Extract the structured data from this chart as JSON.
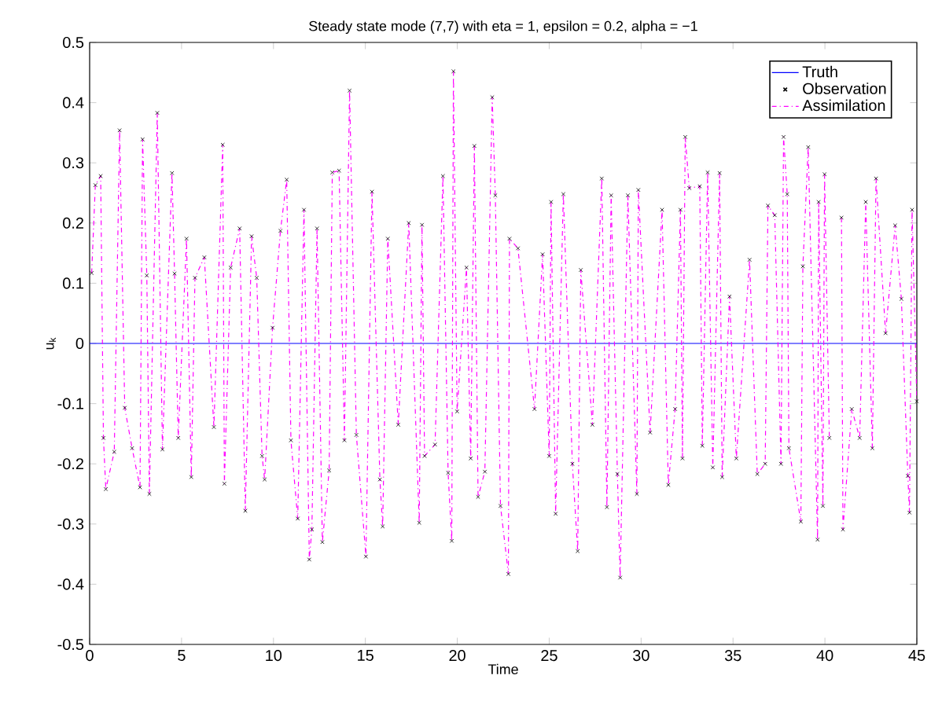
{
  "chart_data": {
    "type": "line",
    "title": "Steady state mode (7,7) with eta = 1, epsilon = 0.2, alpha = −1",
    "xlabel": "Time",
    "ylabel": "u$_{k}$",
    "xlim": [
      0,
      45
    ],
    "ylim": [
      -0.5,
      0.5
    ],
    "xticks": [
      0,
      5,
      10,
      15,
      20,
      25,
      30,
      35,
      40,
      45
    ],
    "yticks": [
      -0.5,
      -0.4,
      -0.3,
      -0.2,
      -0.1,
      0,
      0.1,
      0.2,
      0.3,
      0.4,
      0.5
    ],
    "grid": false,
    "legend": "top right",
    "series": [
      {
        "name": "Truth",
        "color": "#0000ff",
        "marker": "none",
        "line_style": "solid",
        "x": [
          0,
          45
        ],
        "values": [
          0,
          0
        ]
      },
      {
        "name": "Observation",
        "type": "scatter",
        "color": "#000000",
        "marker": "cross",
        "x": [
          0.11,
          0.31,
          0.6,
          0.75,
          0.88,
          1.34,
          1.63,
          1.91,
          2.31,
          2.74,
          2.88,
          3.11,
          3.25,
          3.68,
          3.96,
          4.48,
          4.62,
          4.82,
          5.27,
          5.53,
          5.73,
          6.24,
          6.76,
          7.24,
          7.33,
          7.67,
          8.16,
          8.47,
          8.81,
          9.09,
          9.38,
          9.52,
          9.95,
          10.38,
          10.72,
          10.95,
          11.32,
          11.66,
          11.95,
          12.09,
          12.37,
          12.66,
          13.03,
          13.2,
          13.57,
          13.86,
          14.14,
          14.51,
          15.03,
          15.36,
          15.79,
          15.94,
          16.22,
          16.79,
          17.36,
          17.93,
          18.08,
          18.22,
          18.79,
          19.22,
          19.5,
          19.7,
          19.79,
          19.99,
          20.5,
          20.73,
          20.93,
          21.13,
          21.5,
          21.9,
          22.07,
          22.35,
          22.78,
          22.84,
          23.3,
          24.2,
          24.64,
          25.0,
          25.1,
          25.35,
          25.77,
          26.26,
          26.55,
          26.72,
          27.35,
          27.86,
          28.14,
          28.37,
          28.71,
          28.86,
          29.28,
          29.77,
          29.85,
          30.49,
          31.14,
          31.48,
          31.85,
          32.14,
          32.25,
          32.4,
          32.62,
          33.19,
          33.33,
          33.62,
          33.9,
          34.27,
          34.41,
          34.81,
          35.18,
          35.9,
          36.32,
          36.75,
          36.9,
          37.27,
          37.61,
          37.75,
          37.95,
          38.04,
          38.69,
          38.8,
          39.09,
          39.6,
          39.66,
          39.89,
          39.98,
          40.24,
          40.46,
          40.9,
          40.98,
          41.46,
          41.89,
          42.22,
          42.58,
          42.78,
          43.3,
          43.82,
          44.16,
          44.51,
          44.6,
          44.74,
          45.0
        ],
        "values": [
          0.117,
          0.263,
          0.278,
          -0.157,
          -0.242,
          -0.18,
          0.354,
          -0.107,
          -0.174,
          -0.239,
          0.339,
          0.113,
          -0.25,
          0.383,
          -0.176,
          0.283,
          0.116,
          -0.157,
          0.174,
          -0.222,
          0.109,
          0.143,
          -0.139,
          0.33,
          -0.233,
          0.126,
          0.191,
          -0.278,
          0.178,
          0.109,
          -0.187,
          -0.226,
          0.026,
          0.187,
          0.272,
          -0.161,
          -0.291,
          0.222,
          -0.359,
          -0.309,
          0.191,
          -0.33,
          -0.211,
          0.284,
          0.287,
          -0.161,
          0.42,
          -0.152,
          -0.354,
          0.252,
          -0.226,
          -0.304,
          0.174,
          -0.135,
          0.2,
          -0.298,
          0.197,
          -0.187,
          -0.168,
          0.278,
          -0.215,
          -0.328,
          0.452,
          -0.113,
          0.126,
          -0.191,
          0.328,
          -0.255,
          -0.213,
          0.409,
          0.246,
          -0.27,
          -0.383,
          0.174,
          0.158,
          -0.109,
          0.148,
          -0.187,
          0.235,
          -0.283,
          0.248,
          -0.2,
          -0.345,
          0.122,
          -0.135,
          0.274,
          -0.272,
          0.246,
          -0.217,
          -0.389,
          0.246,
          -0.25,
          0.255,
          -0.148,
          0.222,
          -0.235,
          -0.109,
          0.222,
          -0.191,
          0.343,
          0.258,
          0.261,
          -0.17,
          0.284,
          -0.206,
          0.283,
          -0.222,
          0.078,
          -0.191,
          0.139,
          -0.217,
          -0.2,
          0.229,
          0.213,
          -0.2,
          0.343,
          0.248,
          -0.174,
          -0.296,
          0.128,
          0.326,
          -0.326,
          0.235,
          -0.27,
          0.281,
          -0.157,
          null,
          0.209,
          -0.309,
          -0.109,
          -0.157,
          0.235,
          -0.174,
          0.274,
          0.017,
          0.196,
          0.074,
          -0.22,
          -0.281,
          0.222,
          -0.096
        ]
      },
      {
        "name": "Assimilation",
        "color": "#ff00ff",
        "marker": "none",
        "line_style": "dashdot",
        "x": [
          0.11,
          0.31,
          0.6,
          0.75,
          0.88,
          1.34,
          1.63,
          1.91,
          2.31,
          2.74,
          2.88,
          3.11,
          3.25,
          3.68,
          3.96,
          4.48,
          4.62,
          4.82,
          5.27,
          5.53,
          5.73,
          6.24,
          6.76,
          7.24,
          7.33,
          7.67,
          8.16,
          8.47,
          8.81,
          9.09,
          9.38,
          9.52,
          9.95,
          10.38,
          10.72,
          10.95,
          11.32,
          11.66,
          11.95,
          12.09,
          12.37,
          12.66,
          13.03,
          13.2,
          13.57,
          13.86,
          14.14,
          14.51,
          15.03,
          15.36,
          15.79,
          15.94,
          16.22,
          16.79,
          17.36,
          17.93,
          18.08,
          18.22,
          18.79,
          19.22,
          19.5,
          19.7,
          19.79,
          19.99,
          20.5,
          20.73,
          20.93,
          21.13,
          21.5,
          21.9,
          22.07,
          22.35,
          22.78,
          22.84,
          23.3,
          24.2,
          24.64,
          25.0,
          25.1,
          25.35,
          25.77,
          26.26,
          26.55,
          26.72,
          27.35,
          27.86,
          28.14,
          28.37,
          28.71,
          28.86,
          29.28,
          29.77,
          29.85,
          30.49,
          31.14,
          31.48,
          31.85,
          32.14,
          32.25,
          32.4,
          32.62,
          33.19,
          33.33,
          33.62,
          33.9,
          34.27,
          34.41,
          34.81,
          35.18,
          35.9,
          36.32,
          36.75,
          36.9,
          37.27,
          37.61,
          37.75,
          37.95,
          38.04,
          38.69,
          38.8,
          39.09,
          39.6,
          39.66,
          39.89,
          39.98,
          40.24,
          40.46,
          40.9,
          40.98,
          41.46,
          41.89,
          42.22,
          42.58,
          42.78,
          43.3,
          43.82,
          44.16,
          44.51,
          44.6,
          44.74,
          45.0
        ],
        "values": [
          0.117,
          0.263,
          0.278,
          -0.157,
          -0.242,
          -0.18,
          0.354,
          -0.107,
          -0.174,
          -0.239,
          0.339,
          0.113,
          -0.25,
          0.383,
          -0.176,
          0.283,
          0.116,
          -0.157,
          0.174,
          -0.222,
          0.109,
          0.143,
          -0.139,
          0.33,
          -0.233,
          0.126,
          0.191,
          -0.278,
          0.178,
          0.109,
          -0.187,
          -0.226,
          0.026,
          0.187,
          0.272,
          -0.161,
          -0.291,
          0.222,
          -0.359,
          -0.309,
          0.191,
          -0.33,
          -0.211,
          0.284,
          0.287,
          -0.161,
          0.42,
          -0.152,
          -0.354,
          0.252,
          -0.226,
          -0.304,
          0.174,
          -0.135,
          0.2,
          -0.298,
          0.197,
          -0.187,
          -0.168,
          0.278,
          -0.215,
          -0.328,
          0.452,
          -0.113,
          0.126,
          -0.191,
          0.328,
          -0.255,
          -0.213,
          0.409,
          0.246,
          -0.27,
          -0.383,
          0.174,
          0.158,
          -0.109,
          0.148,
          -0.187,
          0.235,
          -0.283,
          0.248,
          -0.2,
          -0.345,
          0.122,
          -0.135,
          0.274,
          -0.272,
          0.246,
          -0.217,
          -0.389,
          0.246,
          -0.25,
          0.255,
          -0.148,
          0.222,
          -0.235,
          -0.109,
          0.222,
          -0.191,
          0.343,
          0.258,
          0.261,
          -0.17,
          0.284,
          -0.206,
          0.283,
          -0.222,
          0.078,
          -0.191,
          0.139,
          -0.217,
          -0.2,
          0.229,
          0.213,
          -0.2,
          0.343,
          0.248,
          -0.174,
          -0.296,
          0.128,
          0.326,
          -0.326,
          0.235,
          -0.27,
          0.281,
          -0.157,
          null,
          0.209,
          -0.309,
          -0.109,
          -0.157,
          0.235,
          -0.174,
          0.274,
          0.017,
          0.196,
          0.074,
          -0.22,
          -0.281,
          0.222,
          -0.096
        ]
      }
    ]
  }
}
